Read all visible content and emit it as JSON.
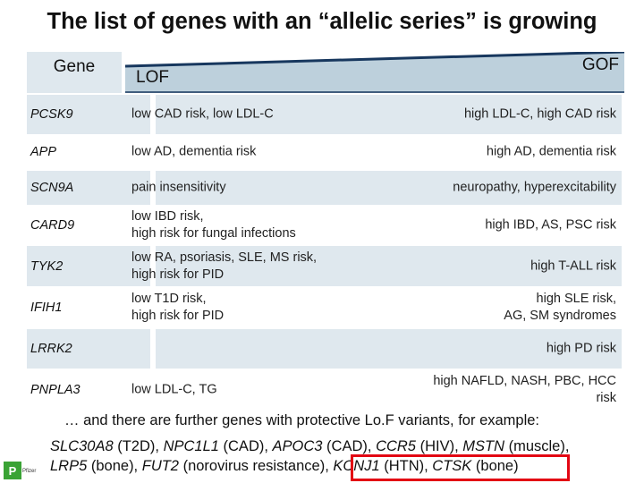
{
  "title": "The list of genes with an “allelic series” is growing",
  "header": {
    "gene": "Gene",
    "lof": "LOF",
    "gof": "GOF",
    "wedge_color": "#bdd0dc",
    "wedge_line_color": "#17375e"
  },
  "rows": [
    {
      "gene": "PCSK9",
      "lof": [
        "low CAD risk, low LDL-C"
      ],
      "gof": [
        "high LDL-C, high CAD risk"
      ]
    },
    {
      "gene": "APP",
      "lof": [
        "low AD, dementia risk"
      ],
      "gof": [
        "high AD, dementia risk"
      ]
    },
    {
      "gene": "SCN9A",
      "lof": [
        "pain insensitivity"
      ],
      "gof": [
        "neuropathy, hyperexcitability"
      ]
    },
    {
      "gene": "CARD9",
      "lof": [
        "low IBD risk,",
        "high risk for fungal infections"
      ],
      "gof": [
        "high IBD, AS, PSC risk"
      ]
    },
    {
      "gene": "TYK2",
      "lof": [
        "low RA, psoriasis, SLE, MS risk,",
        "high risk for PID"
      ],
      "gof": [
        "high T-ALL risk"
      ]
    },
    {
      "gene": "IFIH1",
      "lof": [
        "low T1D risk,",
        "high risk for PID"
      ],
      "gof": [
        "high SLE risk,",
        "AG, SM syndromes"
      ]
    },
    {
      "gene": "LRRK2",
      "lof": [],
      "gof": [
        "high PD risk"
      ]
    },
    {
      "gene": "PNPLA3",
      "lof": [
        "low LDL-C, TG"
      ],
      "gof": [
        "high NAFLD, NASH, PBC, HCC",
        "risk"
      ]
    }
  ],
  "footer": {
    "intro": "… and there are further genes with protective Lo.F variants, for example:",
    "line1": [
      {
        "t": "SLC30A8",
        "i": true
      },
      {
        "t": " (T2D), ",
        "i": false
      },
      {
        "t": "NPC1L1",
        "i": true
      },
      {
        "t": " (CAD), ",
        "i": false
      },
      {
        "t": "APOC3",
        "i": true
      },
      {
        "t": " (CAD), ",
        "i": false
      },
      {
        "t": "CCR5",
        "i": true
      },
      {
        "t": " (HIV), ",
        "i": false
      },
      {
        "t": "MSTN",
        "i": true
      },
      {
        "t": " (muscle),",
        "i": false
      }
    ],
    "line2": [
      {
        "t": "LRP5",
        "i": true
      },
      {
        "t": " (bone), ",
        "i": false
      },
      {
        "t": "FUT2",
        "i": true
      },
      {
        "t": " (norovirus resistance), ",
        "i": false
      },
      {
        "t": "KCNJ1",
        "i": true
      },
      {
        "t": " (HTN), ",
        "i": false
      },
      {
        "t": "CTSK",
        "i": true
      },
      {
        "t": " (bone)",
        "i": false
      }
    ],
    "highlight_color": "#e30613"
  },
  "logo": {
    "icon": "green-p-logo-icon",
    "text": "Pfizer",
    "color": "#3aa335"
  }
}
